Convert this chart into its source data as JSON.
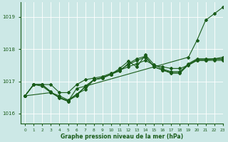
{
  "title": "Graphe pression niveau de la mer (hPa)",
  "bg_color": "#cce8e6",
  "grid_color": "#ffffff",
  "line_color": "#1a5c1a",
  "xlim": [
    -0.5,
    23
  ],
  "ylim": [
    1015.7,
    1019.45
  ],
  "yticks": [
    1016,
    1017,
    1018,
    1019
  ],
  "xticks": [
    0,
    1,
    2,
    3,
    4,
    5,
    6,
    7,
    8,
    9,
    10,
    11,
    12,
    13,
    14,
    15,
    16,
    17,
    18,
    19,
    20,
    21,
    22,
    23
  ],
  "series": [
    {
      "x": [
        0,
        1,
        2,
        3,
        4,
        5,
        6,
        7,
        8,
        9,
        10,
        11,
        12,
        13,
        14,
        15,
        16,
        17,
        18,
        19,
        20,
        21,
        22,
        23
      ],
      "y": [
        1016.55,
        1016.9,
        1016.9,
        1016.9,
        1016.65,
        1016.65,
        1016.9,
        1017.05,
        1017.1,
        1017.15,
        1017.25,
        1017.35,
        1017.45,
        1017.55,
        1017.65,
        1017.5,
        1017.45,
        1017.4,
        1017.4,
        1017.5,
        1017.65,
        1017.65,
        1017.7,
        1017.75
      ]
    },
    {
      "x": [
        0,
        1,
        2,
        3,
        4,
        5,
        6,
        7,
        8,
        9,
        10,
        11,
        12,
        13,
        14,
        15,
        16,
        17,
        18,
        19,
        20,
        21,
        22,
        23
      ],
      "y": [
        1016.55,
        1016.9,
        1016.9,
        1016.65,
        1016.55,
        1016.42,
        1016.6,
        1016.75,
        1017.05,
        1017.1,
        1017.22,
        1017.32,
        1017.55,
        1017.7,
        1017.78,
        1017.45,
        1017.35,
        1017.28,
        1017.28,
        1017.52,
        1017.68,
        1017.68,
        1017.68,
        1017.68
      ]
    },
    {
      "x": [
        0,
        1,
        2,
        3,
        4,
        5,
        6,
        7,
        8,
        9,
        10,
        11,
        12,
        13,
        14,
        15,
        16,
        17,
        18,
        19,
        20,
        21,
        22,
        23
      ],
      "y": [
        1016.55,
        1016.9,
        1016.9,
        1016.68,
        1016.48,
        1016.38,
        1016.6,
        1016.82,
        1017.05,
        1017.1,
        1017.22,
        1017.4,
        1017.62,
        1017.45,
        1017.82,
        1017.52,
        1017.38,
        1017.3,
        1017.3,
        1017.55,
        1017.7,
        1017.7,
        1017.7,
        1017.7
      ]
    },
    {
      "x": [
        0,
        1,
        2,
        3,
        4,
        5,
        6,
        7,
        8,
        9,
        10,
        11,
        12,
        13,
        14,
        15,
        16,
        17,
        18,
        19,
        20,
        21,
        22,
        23
      ],
      "y": [
        1016.55,
        1016.9,
        1016.85,
        1016.65,
        1016.5,
        1016.38,
        1016.78,
        1016.85,
        1017.05,
        1017.12,
        1017.22,
        1017.35,
        1017.52,
        1017.65,
        1017.75,
        1017.45,
        1017.35,
        1017.25,
        1017.25,
        1017.52,
        1017.65,
        1017.65,
        1017.65,
        1017.65
      ]
    },
    {
      "x": [
        0,
        3,
        4,
        5,
        6,
        7,
        19,
        20,
        21,
        22,
        23
      ],
      "y": [
        1016.55,
        1016.65,
        1016.5,
        1016.4,
        1016.55,
        1016.85,
        1017.75,
        1018.28,
        1018.9,
        1019.1,
        1019.3
      ]
    }
  ]
}
